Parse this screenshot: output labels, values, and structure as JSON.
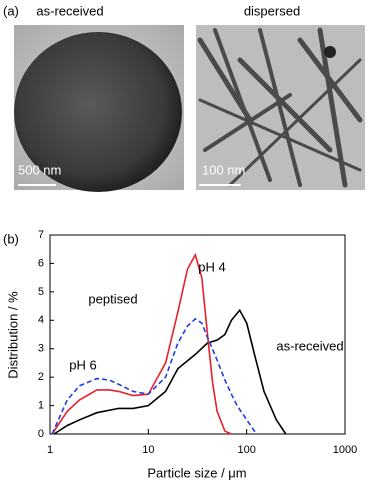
{
  "panel_a": {
    "label": "(a)",
    "left_title": "as-received",
    "right_title": "dispersed",
    "left_scale": "500 nm",
    "right_scale": "100 nm"
  },
  "panel_b": {
    "label": "(b)"
  },
  "chart_data": {
    "type": "line",
    "x_label": "Particle size / μm",
    "y_label": "Distribution / %",
    "log_x": true,
    "xlim": [
      1,
      1000
    ],
    "xticks": [
      1,
      10,
      100,
      1000
    ],
    "ylim": [
      0,
      7
    ],
    "yticks": [
      0,
      1,
      2,
      3,
      4,
      5,
      6,
      7
    ],
    "annotations": [
      "pH 4",
      "peptised",
      "pH 6",
      "as-received"
    ],
    "series": [
      {
        "name": "as-received",
        "color": "#000000",
        "dash": false,
        "x": [
          1.1,
          1.5,
          2,
          3,
          5,
          7,
          10,
          15,
          20,
          30,
          40,
          50,
          60,
          70,
          85,
          100,
          120,
          150,
          200,
          250
        ],
        "values": [
          0,
          0.3,
          0.5,
          0.75,
          0.9,
          0.9,
          1.0,
          1.5,
          2.3,
          2.8,
          3.2,
          3.3,
          3.5,
          4.0,
          4.35,
          3.9,
          2.8,
          1.5,
          0.5,
          0
        ]
      },
      {
        "name": "pH 4",
        "color": "#e8202a",
        "dash": false,
        "x": [
          1.05,
          1.5,
          2,
          3,
          4,
          5,
          7,
          10,
          15,
          20,
          25,
          30,
          35,
          40,
          45,
          50,
          60,
          70
        ],
        "values": [
          0,
          0.8,
          1.2,
          1.55,
          1.55,
          1.5,
          1.35,
          1.4,
          2.5,
          4.3,
          5.8,
          6.3,
          5.5,
          3.5,
          1.8,
          0.8,
          0.1,
          0
        ]
      },
      {
        "name": "pH 6",
        "color": "#1f3fe0",
        "dash": true,
        "x": [
          1.05,
          1.5,
          2,
          3,
          4,
          5,
          7,
          10,
          15,
          20,
          25,
          30,
          35,
          40,
          50,
          60,
          70,
          80,
          100,
          120,
          130
        ],
        "values": [
          0,
          1.2,
          1.7,
          1.95,
          1.9,
          1.75,
          1.5,
          1.4,
          2.0,
          3.2,
          3.8,
          4.05,
          3.9,
          3.4,
          2.6,
          1.9,
          1.4,
          1.0,
          0.5,
          0.1,
          0
        ]
      }
    ]
  }
}
